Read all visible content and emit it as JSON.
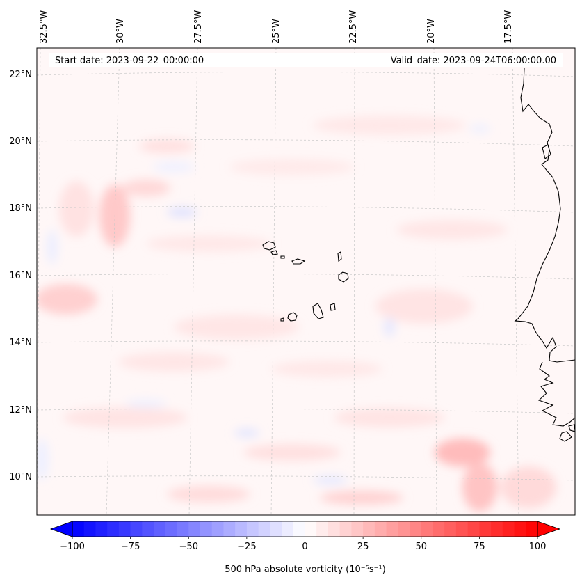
{
  "map": {
    "header": {
      "start_label": "Start date: 2023-09-22_00:00:00",
      "valid_label": "Valid_date: 2023-09-24T06:00:00.00"
    },
    "lon_labels": [
      "32.5°W",
      "30°W",
      "27.5°W",
      "25°W",
      "22.5°W",
      "20°W",
      "17.5°W"
    ],
    "lat_labels": [
      "22°N",
      "20°N",
      "18°N",
      "16°N",
      "14°N",
      "12°N",
      "10°N"
    ],
    "gridlines": true,
    "colors": {
      "coast": "#000000",
      "grid": "#c8c8c8",
      "positive": "#ff0000",
      "negative": "#0000ff",
      "neutral": "#ffffff"
    }
  },
  "colorbar": {
    "label": "500 hPa absolute vorticity (10⁻⁵s⁻¹)",
    "tick_labels": [
      "−100",
      "−75",
      "−50",
      "−25",
      "0",
      "25",
      "50",
      "75",
      "100"
    ],
    "ticks": [
      -100,
      -75,
      -50,
      -25,
      0,
      25,
      50,
      75,
      100
    ],
    "range": [
      -100,
      100
    ],
    "step": 5,
    "colormap": "bwr",
    "extend": "both"
  }
}
